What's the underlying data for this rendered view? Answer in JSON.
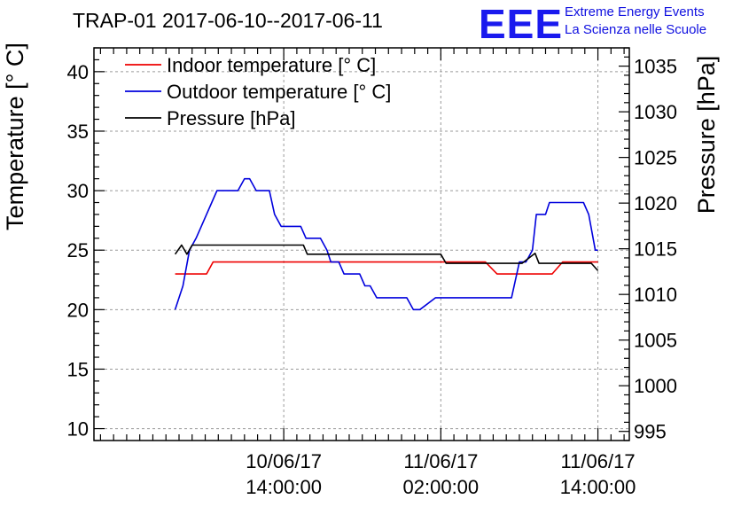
{
  "title": "TRAP-01 2017-06-10--2017-06-11",
  "logo": {
    "mark": "EEE",
    "line1": "Extreme Energy Events",
    "line2": "La Scienza nelle Scuole"
  },
  "chart_data": {
    "type": "line",
    "title": "TRAP-01 2017-06-10--2017-06-11",
    "x_unit": "hours since 2017-06-10 00:00:00",
    "xlim": [
      -0.5,
      40.4
    ],
    "x_ticks": [
      {
        "x": 14,
        "line1": "10/06/17",
        "line2": "14:00:00"
      },
      {
        "x": 26,
        "line1": "11/06/17",
        "line2": "02:00:00"
      },
      {
        "x": 38,
        "line1": "11/06/17",
        "line2": "14:00:00"
      }
    ],
    "left_axis": {
      "label": "Temperature [° C]",
      "ylim": [
        9,
        42
      ],
      "ticks": [
        10,
        15,
        20,
        25,
        30,
        35,
        40
      ],
      "grid": true
    },
    "right_axis": {
      "label": "Pressure [hPa]",
      "ylim": [
        994,
        1037
      ],
      "ticks": [
        995,
        1000,
        1005,
        1010,
        1015,
        1020,
        1025,
        1030,
        1035
      ]
    },
    "legend": [
      "Indoor temperature [° C]",
      "Outdoor temperature [° C]",
      "Pressure [hPa]"
    ],
    "series": [
      {
        "name": "Indoor temperature [° C]",
        "axis": "left",
        "color": "#ee0000",
        "points": [
          [
            5.7,
            23
          ],
          [
            8.1,
            23
          ],
          [
            8.6,
            24
          ],
          [
            29.4,
            24
          ],
          [
            30.3,
            23
          ],
          [
            34.5,
            23
          ],
          [
            35.3,
            24
          ],
          [
            38,
            24
          ]
        ]
      },
      {
        "name": "Outdoor temperature [° C]",
        "axis": "left",
        "color": "#0000dd",
        "points": [
          [
            5.7,
            20
          ],
          [
            6.3,
            22
          ],
          [
            6.8,
            25
          ],
          [
            7.3,
            26
          ],
          [
            7.7,
            27
          ],
          [
            8.1,
            28
          ],
          [
            8.5,
            29
          ],
          [
            8.9,
            30
          ],
          [
            10.5,
            30
          ],
          [
            11,
            31
          ],
          [
            11.4,
            31
          ],
          [
            11.9,
            30
          ],
          [
            12.9,
            30
          ],
          [
            13.3,
            28
          ],
          [
            13.8,
            27
          ],
          [
            15.3,
            27
          ],
          [
            15.7,
            26
          ],
          [
            16.8,
            26
          ],
          [
            17.3,
            25
          ],
          [
            17.6,
            24
          ],
          [
            18.2,
            24
          ],
          [
            18.6,
            23
          ],
          [
            19.8,
            23
          ],
          [
            20.2,
            22
          ],
          [
            20.6,
            22
          ],
          [
            21.1,
            21
          ],
          [
            23.4,
            21
          ],
          [
            23.9,
            20
          ],
          [
            24.4,
            20
          ],
          [
            25.6,
            21
          ],
          [
            29.7,
            21
          ],
          [
            30.6,
            21
          ],
          [
            31.4,
            21
          ],
          [
            32,
            24
          ],
          [
            32.5,
            24
          ],
          [
            33,
            25
          ],
          [
            33.3,
            28
          ],
          [
            34,
            28
          ],
          [
            34.3,
            29
          ],
          [
            36.9,
            29
          ],
          [
            37.3,
            28
          ],
          [
            37.8,
            25
          ],
          [
            38,
            25
          ]
        ]
      },
      {
        "name": "Pressure [hPa]",
        "axis": "right",
        "color": "#000000",
        "points": [
          [
            5.7,
            1014.4
          ],
          [
            6.2,
            1015.4
          ],
          [
            6.6,
            1014.4
          ],
          [
            7,
            1015.4
          ],
          [
            15.5,
            1015.4
          ],
          [
            15.8,
            1014.4
          ],
          [
            26,
            1014.4
          ],
          [
            26.4,
            1013.4
          ],
          [
            32.2,
            1013.4
          ],
          [
            33.2,
            1014.5
          ],
          [
            33.5,
            1013.4
          ],
          [
            37.5,
            1013.4
          ],
          [
            38,
            1012.6
          ]
        ]
      }
    ]
  }
}
